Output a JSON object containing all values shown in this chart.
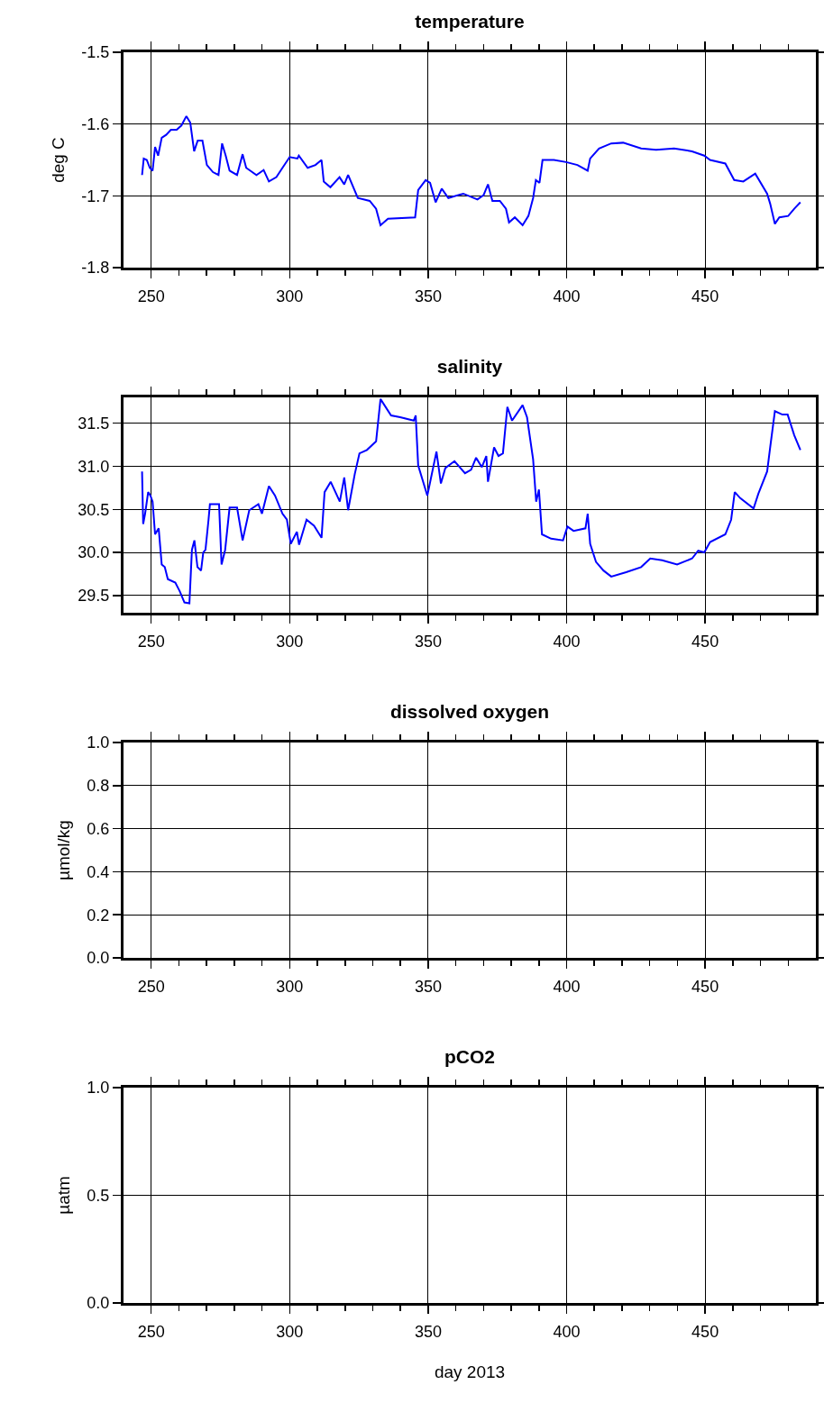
{
  "chart_data": [
    {
      "type": "line",
      "title": "temperature",
      "ylabel": "deg C",
      "grid": true,
      "xlim": [
        240,
        490
      ],
      "ylim": [
        -1.8,
        -1.5
      ],
      "xticks": [
        250,
        300,
        350,
        400,
        450,
        {
          "value": 260,
          "label": null
        },
        {
          "value": 270,
          "label": null
        },
        {
          "value": 280,
          "label": null
        },
        {
          "value": 290,
          "label": null
        },
        {
          "value": 310,
          "label": null
        },
        {
          "value": 320,
          "label": null
        },
        {
          "value": 330,
          "label": null
        },
        {
          "value": 340,
          "label": null
        },
        {
          "value": 360,
          "label": null
        },
        {
          "value": 370,
          "label": null
        },
        {
          "value": 380,
          "label": null
        },
        {
          "value": 390,
          "label": null
        },
        {
          "value": 410,
          "label": null
        },
        {
          "value": 420,
          "label": null
        },
        {
          "value": 430,
          "label": null
        },
        {
          "value": 440,
          "label": null
        },
        {
          "value": 460,
          "label": null
        },
        {
          "value": 470,
          "label": null
        },
        {
          "value": 480,
          "label": null
        }
      ],
      "yticks": [
        -1.8,
        -1.7,
        -1.6,
        -1.5
      ],
      "series": [
        {
          "color": "#0000ff",
          "x": [
            246.7,
            247.3,
            248.4,
            249.5,
            250.5,
            251.4,
            252.5,
            253.8,
            255.4,
            257.1,
            259.2,
            260.9,
            262.7,
            264.1,
            265.5,
            266.8,
            268.5,
            270.1,
            272.3,
            274.3,
            275.6,
            276.9,
            278.3,
            281.0,
            283.0,
            284.3,
            288.0,
            290.6,
            292.5,
            295.2,
            297.4,
            300.0,
            302.8,
            303.3,
            306.5,
            309.3,
            311.5,
            312.3,
            314.7,
            318.0,
            319.7,
            321.1,
            324.6,
            328.9,
            331.2,
            332.8,
            335.5,
            345.3,
            346.4,
            349.1,
            350.7,
            352.7,
            354.9,
            357.3,
            362.7,
            367.8,
            370.0,
            371.6,
            373.2,
            375.9,
            378.1,
            379.2,
            381.3,
            384.1,
            386.2,
            387.9,
            388.9,
            390.2,
            391.3,
            395.4,
            399.8,
            403.9,
            407.6,
            408.5,
            411.7,
            416.1,
            420.4,
            426.9,
            432.3,
            438.8,
            445.3,
            449.7,
            451.8,
            457.3,
            460.5,
            463.8,
            468.1,
            472.4,
            473.5,
            475.2,
            476.8,
            480.0,
            482.2,
            484.4
          ],
          "values": [
            -1.671,
            -1.648,
            -1.65,
            -1.661,
            -1.665,
            -1.632,
            -1.644,
            -1.619,
            -1.615,
            -1.608,
            -1.608,
            -1.602,
            -1.589,
            -1.598,
            -1.638,
            -1.623,
            -1.623,
            -1.657,
            -1.667,
            -1.671,
            -1.627,
            -1.644,
            -1.665,
            -1.671,
            -1.642,
            -1.661,
            -1.671,
            -1.664,
            -1.68,
            -1.674,
            -1.661,
            -1.646,
            -1.648,
            -1.644,
            -1.661,
            -1.657,
            -1.65,
            -1.68,
            -1.688,
            -1.674,
            -1.684,
            -1.671,
            -1.703,
            -1.707,
            -1.718,
            -1.741,
            -1.732,
            -1.73,
            -1.692,
            -1.678,
            -1.682,
            -1.709,
            -1.69,
            -1.703,
            -1.697,
            -1.705,
            -1.699,
            -1.684,
            -1.707,
            -1.707,
            -1.718,
            -1.737,
            -1.73,
            -1.741,
            -1.728,
            -1.703,
            -1.678,
            -1.682,
            -1.65,
            -1.65,
            -1.653,
            -1.657,
            -1.665,
            -1.648,
            -1.634,
            -1.627,
            -1.626,
            -1.634,
            -1.636,
            -1.634,
            -1.638,
            -1.644,
            -1.65,
            -1.655,
            -1.678,
            -1.68,
            -1.669,
            -1.697,
            -1.711,
            -1.739,
            -1.73,
            -1.728,
            -1.718,
            -1.709
          ]
        }
      ]
    },
    {
      "type": "line",
      "title": "salinity",
      "grid": true,
      "xlim": [
        240,
        490
      ],
      "ylim": [
        29.3,
        31.8
      ],
      "xticks": [
        250,
        300,
        350,
        400,
        450,
        {
          "value": 260,
          "label": null
        },
        {
          "value": 270,
          "label": null
        },
        {
          "value": 280,
          "label": null
        },
        {
          "value": 290,
          "label": null
        },
        {
          "value": 310,
          "label": null
        },
        {
          "value": 320,
          "label": null
        },
        {
          "value": 330,
          "label": null
        },
        {
          "value": 340,
          "label": null
        },
        {
          "value": 360,
          "label": null
        },
        {
          "value": 370,
          "label": null
        },
        {
          "value": 380,
          "label": null
        },
        {
          "value": 390,
          "label": null
        },
        {
          "value": 410,
          "label": null
        },
        {
          "value": 420,
          "label": null
        },
        {
          "value": 430,
          "label": null
        },
        {
          "value": 440,
          "label": null
        },
        {
          "value": 460,
          "label": null
        },
        {
          "value": 470,
          "label": null
        },
        {
          "value": 480,
          "label": null
        }
      ],
      "yticks": [
        29.5,
        {
          "value": 30,
          "label": "30.0"
        },
        30.5,
        {
          "value": 31,
          "label": "31.0"
        },
        31.5
      ],
      "series": [
        {
          "color": "#0000ff",
          "x": [
            246.7,
            247.1,
            247.8,
            248.9,
            249.7,
            250.5,
            251.4,
            252.7,
            253.8,
            254.9,
            256.0,
            258.7,
            260.3,
            262.0,
            263.8,
            264.7,
            265.6,
            266.7,
            268.0,
            268.8,
            269.6,
            270.7,
            271.2,
            274.5,
            275.4,
            276.7,
            278.3,
            281.0,
            283.0,
            285.4,
            288.7,
            290.0,
            292.5,
            294.7,
            297.4,
            299.0,
            300.4,
            302.6,
            303.4,
            306.1,
            308.8,
            311.5,
            312.6,
            314.8,
            318.1,
            319.7,
            321.1,
            323.5,
            325.2,
            327.9,
            331.2,
            332.8,
            336.6,
            339.9,
            344.8,
            345.5,
            346.4,
            349.7,
            353.0,
            354.6,
            356.2,
            359.5,
            363.3,
            365.5,
            367.3,
            369.4,
            371.0,
            371.6,
            373.8,
            375.4,
            377.0,
            378.6,
            380.3,
            384.1,
            385.7,
            387.9,
            389.0,
            390.0,
            391.1,
            394.4,
            398.7,
            400.3,
            402.5,
            406.8,
            407.6,
            408.5,
            410.6,
            413.3,
            416.1,
            421.5,
            426.9,
            430.2,
            434.5,
            439.9,
            445.3,
            447.5,
            449.7,
            451.8,
            457.3,
            459.4,
            460.7,
            462.7,
            467.5,
            469.2,
            472.4,
            473.5,
            475.2,
            477.9,
            479.8,
            482.2,
            484.4
          ],
          "values": [
            30.94,
            30.33,
            30.45,
            30.7,
            30.66,
            30.59,
            30.21,
            30.28,
            29.86,
            29.83,
            29.69,
            29.65,
            29.55,
            29.42,
            29.41,
            30.03,
            30.14,
            29.83,
            29.79,
            30.0,
            30.03,
            30.38,
            30.56,
            30.56,
            29.86,
            30.03,
            30.52,
            30.52,
            30.14,
            30.49,
            30.56,
            30.45,
            30.77,
            30.66,
            30.45,
            30.38,
            30.1,
            30.24,
            30.09,
            30.38,
            30.31,
            30.17,
            30.7,
            30.82,
            30.59,
            30.87,
            30.49,
            30.91,
            31.15,
            31.19,
            31.29,
            31.78,
            31.59,
            31.57,
            31.53,
            31.59,
            31.01,
            30.66,
            31.17,
            30.8,
            30.98,
            31.06,
            30.92,
            30.96,
            31.1,
            30.99,
            31.12,
            30.82,
            31.22,
            31.12,
            31.15,
            31.69,
            31.53,
            31.71,
            31.57,
            31.08,
            30.59,
            30.73,
            30.21,
            30.16,
            30.14,
            30.3,
            30.25,
            30.28,
            30.45,
            30.1,
            29.89,
            29.79,
            29.72,
            29.77,
            29.83,
            29.93,
            29.91,
            29.86,
            29.93,
            30.02,
            30.0,
            30.12,
            30.21,
            30.38,
            30.7,
            30.63,
            30.51,
            30.68,
            30.94,
            31.22,
            31.64,
            31.6,
            31.6,
            31.36,
            31.19
          ]
        }
      ]
    },
    {
      "type": "line",
      "title": "dissolved oxygen",
      "ylabel": "µmol/kg",
      "grid": true,
      "xlim": [
        240,
        490
      ],
      "ylim": [
        0,
        1
      ],
      "xticks": [
        250,
        300,
        350,
        400,
        450,
        {
          "value": 260,
          "label": null
        },
        {
          "value": 270,
          "label": null
        },
        {
          "value": 280,
          "label": null
        },
        {
          "value": 290,
          "label": null
        },
        {
          "value": 310,
          "label": null
        },
        {
          "value": 320,
          "label": null
        },
        {
          "value": 330,
          "label": null
        },
        {
          "value": 340,
          "label": null
        },
        {
          "value": 360,
          "label": null
        },
        {
          "value": 370,
          "label": null
        },
        {
          "value": 380,
          "label": null
        },
        {
          "value": 390,
          "label": null
        },
        {
          "value": 410,
          "label": null
        },
        {
          "value": 420,
          "label": null
        },
        {
          "value": 430,
          "label": null
        },
        {
          "value": 440,
          "label": null
        },
        {
          "value": 460,
          "label": null
        },
        {
          "value": 470,
          "label": null
        },
        {
          "value": 480,
          "label": null
        }
      ],
      "yticks": [
        {
          "value": 0,
          "label": "0.0"
        },
        0.2,
        0.4,
        0.6,
        0.8,
        {
          "value": 1,
          "label": "1.0"
        }
      ]
    },
    {
      "type": "line",
      "title": "pCO2",
      "ylabel": "µatm",
      "xlabel": "day 2013",
      "grid": true,
      "xlim": [
        240,
        490
      ],
      "ylim": [
        0,
        1
      ],
      "xticks": [
        250,
        300,
        350,
        400,
        450,
        {
          "value": 260,
          "label": null
        },
        {
          "value": 270,
          "label": null
        },
        {
          "value": 280,
          "label": null
        },
        {
          "value": 290,
          "label": null
        },
        {
          "value": 310,
          "label": null
        },
        {
          "value": 320,
          "label": null
        },
        {
          "value": 330,
          "label": null
        },
        {
          "value": 340,
          "label": null
        },
        {
          "value": 360,
          "label": null
        },
        {
          "value": 370,
          "label": null
        },
        {
          "value": 380,
          "label": null
        },
        {
          "value": 390,
          "label": null
        },
        {
          "value": 410,
          "label": null
        },
        {
          "value": 420,
          "label": null
        },
        {
          "value": 430,
          "label": null
        },
        {
          "value": 440,
          "label": null
        },
        {
          "value": 460,
          "label": null
        },
        {
          "value": 470,
          "label": null
        },
        {
          "value": 480,
          "label": null
        }
      ],
      "yticks": [
        {
          "value": 0,
          "label": "0.0"
        },
        0.5,
        {
          "value": 1,
          "label": "1.0"
        }
      ]
    }
  ]
}
